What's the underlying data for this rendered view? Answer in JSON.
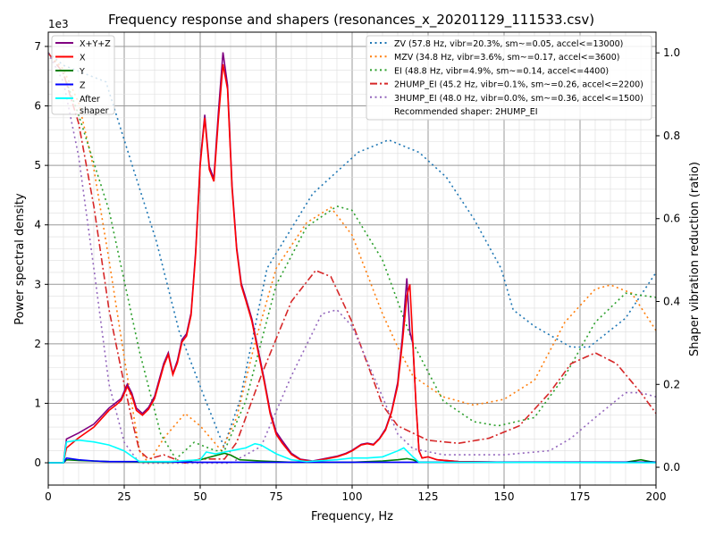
{
  "chart_data": {
    "type": "line",
    "title": "Frequency response and shapers (resonances_x_20201129_111533.csv)",
    "xlabel": "Frequency, Hz",
    "ylabel": "Power spectral density",
    "ylabel_right": "Shaper vibration reduction (ratio)",
    "y_offset_label": "1e3",
    "xlim": [
      0,
      200
    ],
    "ylim": [
      -0.375,
      7.24
    ],
    "ylim_right": [
      -0.043,
      1.05
    ],
    "xticks": [
      0,
      25,
      50,
      75,
      100,
      125,
      150,
      175,
      200
    ],
    "yticks": [
      0,
      1,
      2,
      3,
      4,
      5,
      6,
      7
    ],
    "yticks_right": [
      "0.0",
      "0.2",
      "0.4",
      "0.6",
      "0.8",
      "1.0"
    ],
    "grid": true,
    "psd_legend_placement": "top-left",
    "shaper_legend_placement": "top-right",
    "recommended": "Recommended shaper: 2HUMP_EI",
    "psd_series": [
      {
        "name": "X+Y+Z",
        "color": "#800080",
        "x": [
          0,
          5,
          6,
          10,
          15,
          20,
          22.5,
          24,
          26,
          27.5,
          29,
          31,
          33,
          35,
          38,
          39.5,
          41,
          42.5,
          44,
          45.5,
          47,
          48.5,
          50,
          51.5,
          53,
          54.5,
          56,
          57.5,
          59,
          60.5,
          62,
          63.5,
          65,
          67,
          69,
          71,
          73,
          75,
          77,
          80,
          83,
          87,
          90,
          95,
          98,
          100,
          103,
          105,
          107,
          109,
          111,
          113,
          115,
          116.5,
          118,
          119,
          120,
          121,
          122,
          123,
          125,
          128,
          135,
          150,
          200
        ],
        "y": [
          0,
          0,
          0.4,
          0.5,
          0.65,
          0.92,
          1.02,
          1.08,
          1.32,
          1.17,
          0.92,
          0.83,
          0.93,
          1.12,
          1.67,
          1.85,
          1.5,
          1.72,
          2.07,
          2.17,
          2.52,
          3.55,
          5.05,
          5.85,
          4.98,
          4.78,
          5.9,
          6.9,
          6.35,
          4.65,
          3.62,
          3.02,
          2.77,
          2.42,
          1.92,
          1.42,
          0.87,
          0.52,
          0.37,
          0.16,
          0.06,
          0.03,
          0.06,
          0.11,
          0.16,
          0.21,
          0.31,
          0.33,
          0.31,
          0.41,
          0.57,
          0.87,
          1.35,
          2.1,
          3.1,
          2.2,
          2.0,
          1.0,
          0.2,
          0.08,
          0.1,
          0.05,
          0.02,
          0.01,
          0.01
        ]
      },
      {
        "name": "X",
        "color": "#ff0000",
        "x": [
          0,
          5,
          6,
          10,
          15,
          20,
          22.5,
          24,
          26,
          27.5,
          29,
          31,
          33,
          35,
          38,
          39.5,
          41,
          42.5,
          44,
          45.5,
          47,
          48.5,
          50,
          51.5,
          53,
          54.5,
          56,
          57.5,
          59,
          60.5,
          62,
          63.5,
          65,
          67,
          69,
          71,
          73,
          75,
          77,
          80,
          83,
          87,
          90,
          95,
          98,
          100,
          103,
          105,
          107,
          109,
          111,
          113,
          115,
          116.5,
          118,
          119,
          120,
          121,
          122,
          123,
          125,
          128,
          135,
          150,
          200
        ],
        "y": [
          0,
          0,
          0.25,
          0.42,
          0.6,
          0.88,
          0.98,
          1.05,
          1.28,
          1.13,
          0.88,
          0.8,
          0.9,
          1.08,
          1.63,
          1.82,
          1.48,
          1.68,
          2.03,
          2.13,
          2.48,
          3.5,
          5.0,
          5.8,
          4.93,
          4.73,
          5.78,
          6.7,
          6.28,
          4.6,
          3.58,
          2.98,
          2.73,
          2.38,
          1.88,
          1.38,
          0.83,
          0.48,
          0.33,
          0.14,
          0.05,
          0.02,
          0.05,
          0.1,
          0.15,
          0.2,
          0.3,
          0.32,
          0.3,
          0.4,
          0.55,
          0.85,
          1.3,
          2.0,
          2.8,
          3.0,
          2.0,
          1.0,
          0.2,
          0.08,
          0.1,
          0.05,
          0.02,
          0.01,
          0.01
        ]
      },
      {
        "name": "Y",
        "color": "#008000",
        "x": [
          0,
          5,
          6,
          10,
          20,
          40,
          50,
          55,
          58,
          60,
          63,
          70,
          80,
          100,
          110,
          115,
          118,
          120,
          122,
          130,
          190,
          195,
          198,
          200
        ],
        "y": [
          0,
          0,
          0.05,
          0.04,
          0.02,
          0.01,
          0.05,
          0.12,
          0.16,
          0.13,
          0.05,
          0.03,
          0.01,
          0.01,
          0.03,
          0.05,
          0.07,
          0.05,
          0.01,
          0.01,
          0.01,
          0.05,
          0.02,
          0.01
        ]
      },
      {
        "name": "Z",
        "color": "#0000ff",
        "x": [
          0,
          5,
          6,
          10,
          15,
          20,
          30,
          50,
          100,
          150,
          200
        ],
        "y": [
          0,
          0,
          0.08,
          0.05,
          0.03,
          0.02,
          0.02,
          0.01,
          0.01,
          0.01,
          0.01
        ]
      },
      {
        "name": "After\nshaper",
        "color": "#00ffff",
        "x": [
          0,
          5,
          6,
          10,
          15,
          20,
          25,
          30,
          40,
          50,
          52,
          55,
          60,
          65,
          68,
          70,
          75,
          80,
          85,
          95,
          100,
          105,
          110,
          115,
          117,
          120,
          122,
          200
        ],
        "y": [
          0,
          0,
          0.35,
          0.38,
          0.35,
          0.3,
          0.2,
          0.02,
          0.02,
          0.05,
          0.18,
          0.15,
          0.2,
          0.25,
          0.32,
          0.3,
          0.15,
          0.05,
          0.02,
          0.05,
          0.08,
          0.08,
          0.1,
          0.2,
          0.25,
          0.1,
          0.01,
          0
        ]
      }
    ],
    "shaper_series": [
      {
        "name": "ZV (57.8 Hz, vibr=20.3%, sm~=0.05, accel<=13000)",
        "color": "#1f77b4",
        "dash": "2,3.5",
        "x": [
          0,
          5,
          12,
          19,
          28,
          35.6,
          43,
          52,
          57.8,
          63,
          72,
          87,
          102,
          112,
          122,
          131,
          140,
          149,
          153,
          160,
          172,
          178,
          190,
          200
        ],
        "y": [
          1.0,
          0.97,
          0.95,
          0.93,
          0.72,
          0.545,
          0.33,
          0.157,
          0.05,
          0.16,
          0.48,
          0.66,
          0.76,
          0.79,
          0.76,
          0.7,
          0.6,
          0.48,
          0.38,
          0.34,
          0.29,
          0.29,
          0.36,
          0.47
        ]
      },
      {
        "name": "MZV (34.8 Hz, vibr=3.6%, sm~=0.17, accel<=3600)",
        "color": "#ff7f0e",
        "dash": "2,3.5",
        "x": [
          0,
          5,
          10,
          15,
          20,
          25,
          30,
          33,
          38,
          45,
          50,
          57,
          62,
          68,
          75,
          85,
          93,
          100,
          110,
          115,
          120,
          130,
          140,
          150,
          160,
          170,
          180,
          185,
          192,
          200
        ],
        "y": [
          1.0,
          0.96,
          0.88,
          0.72,
          0.5,
          0.265,
          0.04,
          0.01,
          0.07,
          0.13,
          0.1,
          0.04,
          0.12,
          0.3,
          0.48,
          0.59,
          0.627,
          0.56,
          0.37,
          0.29,
          0.22,
          0.17,
          0.15,
          0.164,
          0.21,
          0.35,
          0.43,
          0.44,
          0.42,
          0.33
        ]
      },
      {
        "name": "EI (48.8 Hz, vibr=4.9%, sm~=0.14, accel<=4400)",
        "color": "#2ca02c",
        "dash": "2,3.5",
        "x": [
          0,
          5,
          10,
          20,
          30,
          37,
          42,
          48,
          55,
          58,
          65,
          75,
          85,
          95,
          100,
          110,
          120,
          130,
          140,
          148,
          160,
          170,
          180,
          190,
          200
        ],
        "y": [
          1.0,
          0.95,
          0.85,
          0.62,
          0.28,
          0.08,
          0.02,
          0.06,
          0.04,
          0.04,
          0.16,
          0.44,
          0.58,
          0.63,
          0.62,
          0.5,
          0.3,
          0.16,
          0.11,
          0.1,
          0.12,
          0.22,
          0.35,
          0.42,
          0.41
        ]
      },
      {
        "name": "2HUMP_EI (45.2 Hz, vibr=0.1%, sm~=0.26, accel<=2200)",
        "color": "#d62728",
        "dash": "8,3,2,3",
        "x": [
          0,
          5,
          10,
          15,
          20,
          25,
          28,
          30,
          33,
          38,
          45,
          50,
          58,
          62,
          70,
          80,
          88,
          93,
          100,
          110,
          115,
          125,
          135,
          145,
          155,
          165,
          172,
          180,
          187,
          195,
          200
        ],
        "y": [
          1.0,
          0.95,
          0.83,
          0.63,
          0.38,
          0.2,
          0.1,
          0.04,
          0.02,
          0.03,
          0.01,
          0.02,
          0.02,
          0.06,
          0.22,
          0.4,
          0.475,
          0.46,
          0.35,
          0.15,
          0.1,
          0.065,
          0.058,
          0.07,
          0.1,
          0.18,
          0.25,
          0.276,
          0.25,
          0.18,
          0.13
        ]
      },
      {
        "name": "3HUMP_EI (48.0 Hz, vibr=0.0%, sm~=0.36, accel<=1500)",
        "color": "#9467bd",
        "dash": "2,3.5",
        "x": [
          0,
          5,
          10,
          15,
          20,
          25,
          30,
          40,
          50,
          60,
          70,
          80,
          90,
          95,
          100,
          110,
          115,
          120,
          130,
          150,
          165,
          172,
          180,
          190,
          195,
          200
        ],
        "y": [
          1.0,
          0.93,
          0.75,
          0.48,
          0.2,
          0.06,
          0.01,
          0.01,
          0.01,
          0.01,
          0.05,
          0.22,
          0.37,
          0.38,
          0.34,
          0.17,
          0.08,
          0.045,
          0.03,
          0.03,
          0.04,
          0.07,
          0.12,
          0.18,
          0.18,
          0.17
        ]
      }
    ]
  }
}
